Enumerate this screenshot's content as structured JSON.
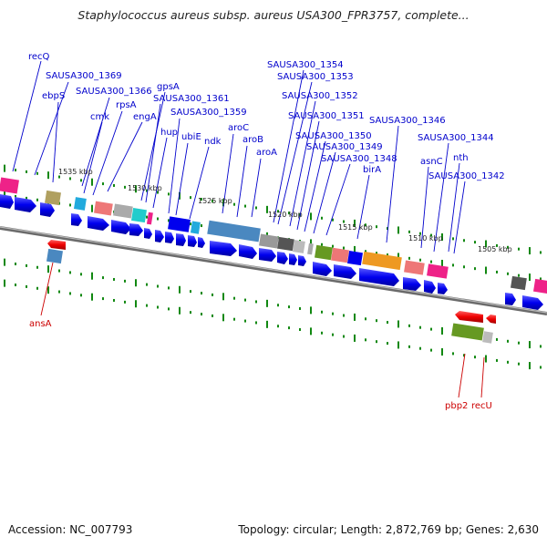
{
  "title": "Staphylococcus aureus subsp. aureus USA300_FPR3757, complete...",
  "footer": {
    "accession": "Accession: NC_007793",
    "topology": "Topology: circular; Length: 2,872,769 bp; Genes: 2,630"
  },
  "scale_labels": [
    "1535 kbp",
    "1530 kbp",
    "1525 kbp",
    "1520 kbp",
    "1515 kbp",
    "1510 kbp",
    "1505 kbp"
  ],
  "genes_top": [
    "recQ",
    "SAUSA300_1369",
    "ebpS",
    "SAUSA300_1366",
    "cmk",
    "rpsA",
    "engA",
    "gpsA",
    "SAUSA300_1361",
    "hup",
    "SAUSA300_1359",
    "ubiE",
    "ndk",
    "aroC",
    "aroB",
    "aroA",
    "SAUSA300_1354",
    "SAUSA300_1353",
    "SAUSA300_1352",
    "SAUSA300_1351",
    "SAUSA300_1350",
    "SAUSA300_1349",
    "SAUSA300_1348",
    "birA",
    "SAUSA300_1346",
    "SAUSA300_1344",
    "asnC",
    "nth",
    "SAUSA300_1342"
  ],
  "genes_bottom": [
    "ansA",
    "pbp2",
    "recU"
  ],
  "colors": {
    "cds": "#0000ee",
    "label_forward": "#0000cc",
    "label_reverse": "#cc0000",
    "backbone": "#777777",
    "ticks": "#118811"
  }
}
